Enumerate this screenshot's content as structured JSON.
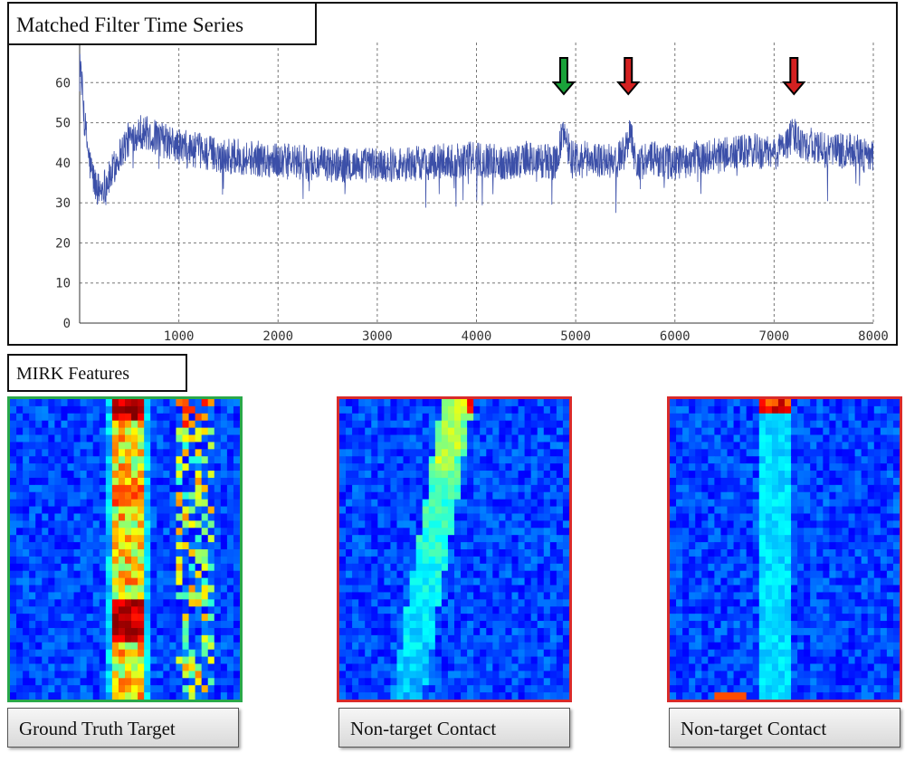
{
  "chart_data": {
    "type": "line",
    "title": "Matched Filter Time Series",
    "xlim": [
      0,
      8000
    ],
    "ylim": [
      0,
      70
    ],
    "x_ticks": [
      1000,
      2000,
      3000,
      4000,
      5000,
      6000,
      7000,
      8000
    ],
    "y_ticks": [
      0,
      10,
      20,
      30,
      40,
      50,
      60
    ],
    "grid": true,
    "series": [
      {
        "color": "#3b4fa8",
        "x": [
          0,
          50,
          100,
          150,
          200,
          300,
          400,
          500,
          600,
          700,
          800,
          900,
          1000,
          1200,
          1400,
          1600,
          1800,
          2000,
          2200,
          2500,
          3000,
          3500,
          4000,
          4300,
          4500,
          4800,
          4880,
          4950,
          5000,
          5200,
          5400,
          5500,
          5550,
          5600,
          5800,
          6000,
          6200,
          6500,
          6800,
          7000,
          7200,
          7300,
          7500,
          7800,
          8000
        ],
        "y": [
          67,
          50,
          40,
          35,
          33,
          36,
          42,
          46,
          48,
          47,
          46,
          45,
          44,
          43,
          42,
          41.5,
          41,
          40.5,
          40,
          39.5,
          39.5,
          40,
          41,
          40,
          41,
          40,
          48,
          42,
          41,
          41,
          40,
          43,
          49,
          40,
          41,
          40,
          41,
          42,
          43,
          42,
          47,
          45,
          43,
          43,
          41
        ]
      }
    ],
    "annotations": [
      {
        "type": "arrow",
        "x": 4880,
        "color": "#1aa33a"
      },
      {
        "type": "arrow",
        "x": 5530,
        "color": "#d42121"
      },
      {
        "type": "arrow",
        "x": 7200,
        "color": "#d42121"
      }
    ]
  },
  "mirk": {
    "label": "MIRK Features",
    "panels": [
      {
        "caption": "Ground Truth Target",
        "border_color": "#2aa84a",
        "pattern": "target"
      },
      {
        "caption": "Non-target Contact",
        "border_color": "#d92b2b",
        "pattern": "slant"
      },
      {
        "caption": "Non-target Contact",
        "border_color": "#d92b2b",
        "pattern": "vertical"
      }
    ]
  }
}
